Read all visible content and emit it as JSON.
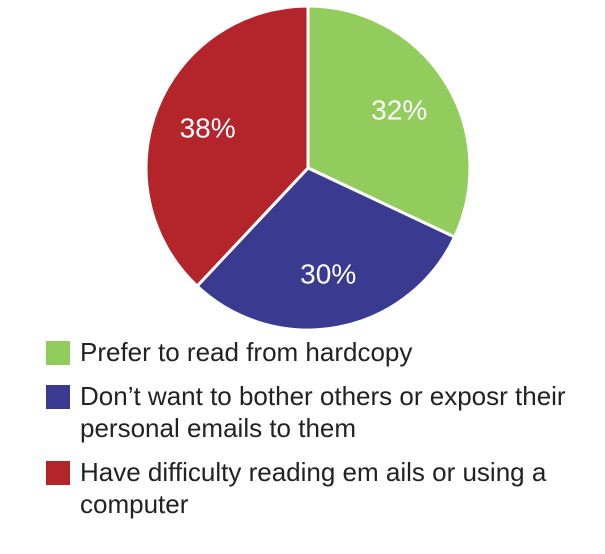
{
  "chart_data": {
    "type": "pie",
    "slices": [
      {
        "label": "Prefer to read from hardcopy",
        "value": 32,
        "value_label": "32%",
        "color": "#92cc5c"
      },
      {
        "label": "Don’t want to bother others or exposr their personal emails to them",
        "value": 30,
        "value_label": "30%",
        "color": "#3a3a91"
      },
      {
        "label": "Have difficulty reading em ails or using a computer",
        "value": 38,
        "value_label": "38%",
        "color": "#b3252b"
      }
    ],
    "start_angle_deg": 0,
    "direction": "clockwise",
    "legend_position": "bottom",
    "data_label_color": "#ffffff"
  }
}
